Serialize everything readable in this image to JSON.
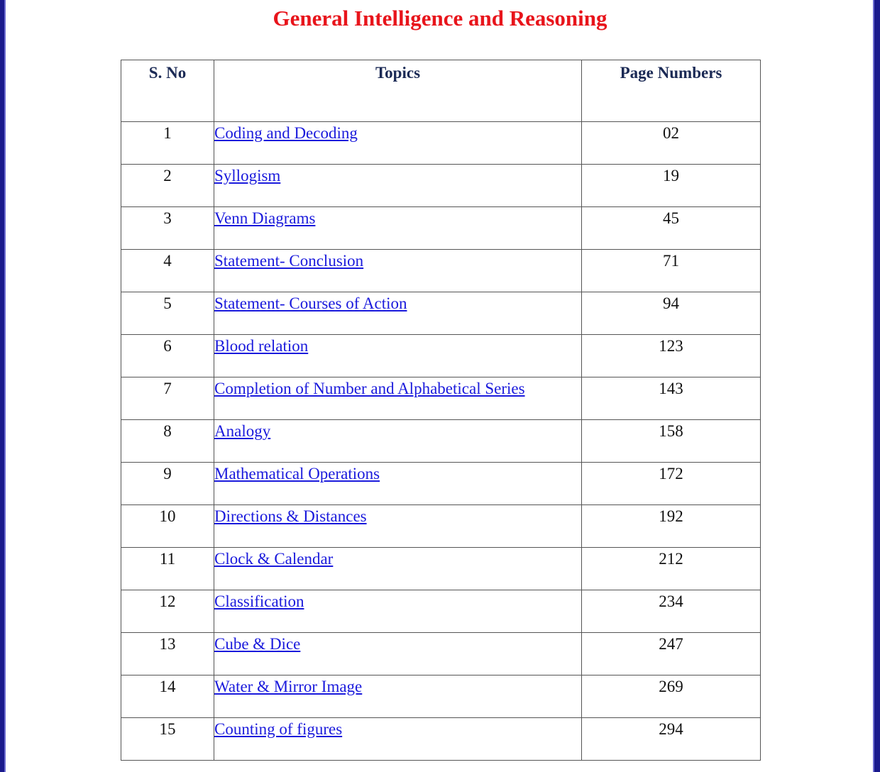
{
  "title": "General Intelligence and Reasoning",
  "headers": {
    "sno": "S. No",
    "topics": "Topics",
    "page_numbers": "Page Numbers"
  },
  "rows": [
    {
      "sno": "1",
      "topic": "Coding and Decoding",
      "page": "02"
    },
    {
      "sno": "2",
      "topic": "Syllogism",
      "page": "19"
    },
    {
      "sno": "3",
      "topic": "Venn Diagrams",
      "page": "45"
    },
    {
      "sno": "4",
      "topic": "Statement- Conclusion",
      "page": "71"
    },
    {
      "sno": "5",
      "topic": "Statement- Courses of Action",
      "page": "94"
    },
    {
      "sno": "6",
      "topic": "Blood relation",
      "page": "123"
    },
    {
      "sno": "7",
      "topic": "Completion of Number and Alphabetical Series",
      "page": "143"
    },
    {
      "sno": "8",
      "topic": "Analogy",
      "page": "158"
    },
    {
      "sno": "9",
      "topic": "Mathematical Operations",
      "page": "172"
    },
    {
      "sno": "10",
      "topic": "Directions & Distances",
      "page": "192"
    },
    {
      "sno": "11",
      "topic": "Clock & Calendar",
      "page": "212"
    },
    {
      "sno": "12",
      "topic": "Classification",
      "page": "234"
    },
    {
      "sno": "13",
      "topic": "Cube & Dice",
      "page": "247"
    },
    {
      "sno": "14",
      "topic": "Water & Mirror Image",
      "page": "269"
    },
    {
      "sno": "15",
      "topic": "Counting of figures",
      "page": "294"
    }
  ],
  "colors": {
    "title": "#e8141b",
    "header_text": "#1b2a55",
    "link": "#1a1adc",
    "page_border": "#1a1a8c"
  }
}
